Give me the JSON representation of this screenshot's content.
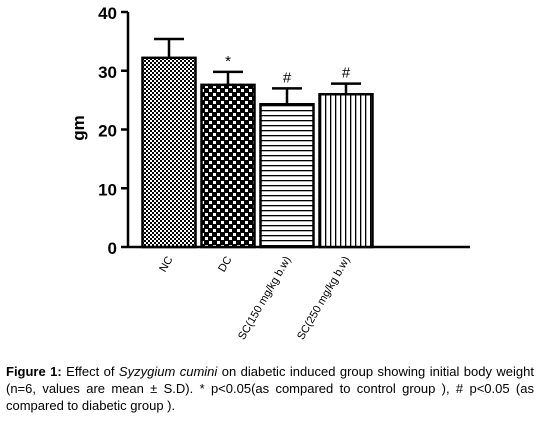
{
  "chart_data": {
    "type": "bar",
    "ylabel": "gm",
    "xlabel": "",
    "ylim": [
      0,
      40
    ],
    "yticks": [
      "0",
      "10",
      "20",
      "30",
      "40"
    ],
    "categories": [
      "NC",
      "DC",
      "SC(150 mg/kg b.w)",
      "SC(250 mg/kg b.w)"
    ],
    "values": [
      32.2,
      27.6,
      24.3,
      26.0
    ],
    "errors": [
      3.2,
      2.2,
      2.7,
      1.8
    ],
    "annotations": [
      "",
      "*",
      "#",
      "#"
    ],
    "patterns": [
      "checker",
      "dots",
      "horizontal-lines",
      "vertical-lines"
    ],
    "grid": false,
    "legend": "none"
  },
  "caption": {
    "label": "Figure 1:",
    "text_before": " Effect of ",
    "species": "Syzygium cumini",
    "text_after": " on diabetic induced group showing initial body weight (n=6, values are mean ± S.D). * p<0.05(as compared to control group ), # p<0.05 (as compared to diabetic group )."
  }
}
